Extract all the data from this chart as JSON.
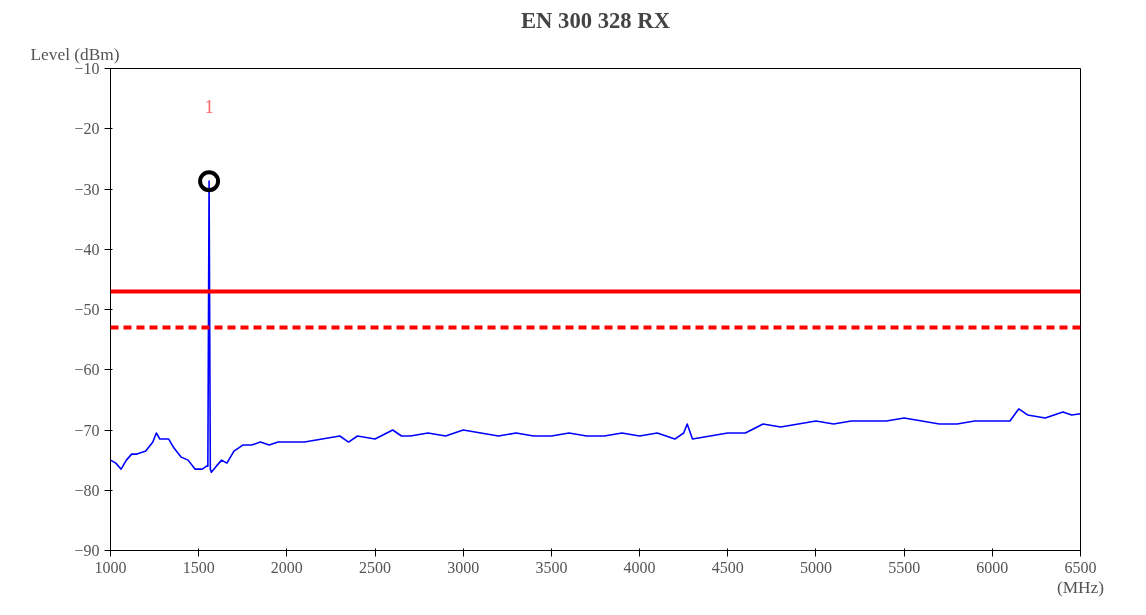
{
  "chart_data": {
    "type": "line",
    "title": "EN 300 328 RX",
    "xlabel": "(MHz)",
    "ylabel": "Level (dBm)",
    "xlim": [
      1000,
      6500
    ],
    "xticks": [
      1000,
      1500,
      2000,
      2500,
      3000,
      3500,
      4000,
      4500,
      5000,
      5500,
      6000,
      6500
    ],
    "ylim": [
      -90,
      -10
    ],
    "yticks": [
      -90,
      -80,
      -70,
      -60,
      -50,
      -40,
      -30,
      -20,
      -10
    ],
    "grid": false,
    "marker": "none",
    "line_style": "solid",
    "series": [
      {
        "color": "#0000ff",
        "x": [
          1000,
          1030,
          1060,
          1090,
          1120,
          1150,
          1200,
          1240,
          1260,
          1280,
          1300,
          1330,
          1360,
          1400,
          1440,
          1480,
          1520,
          1545,
          1552,
          1559,
          1566,
          1572,
          1600,
          1630,
          1660,
          1700,
          1750,
          1800,
          1850,
          1900,
          1950,
          2000,
          2100,
          2200,
          2300,
          2350,
          2400,
          2500,
          2600,
          2650,
          2700,
          2800,
          2900,
          3000,
          3100,
          3200,
          3300,
          3400,
          3500,
          3600,
          3700,
          3800,
          3900,
          4000,
          4100,
          4200,
          4250,
          4270,
          4300,
          4400,
          4500,
          4600,
          4700,
          4800,
          4900,
          5000,
          5100,
          5200,
          5300,
          5400,
          5500,
          5600,
          5700,
          5800,
          5900,
          6000,
          6100,
          6150,
          6200,
          6300,
          6400,
          6450,
          6500
        ],
        "values": [
          -75,
          -75.5,
          -76.5,
          -75,
          -74,
          -74,
          -73.5,
          -72,
          -70.5,
          -71.5,
          -71.5,
          -71.5,
          -73,
          -74.5,
          -75,
          -76.5,
          -76.5,
          -76,
          -76,
          -28.7,
          -76.5,
          -77,
          -76,
          -75,
          -75.5,
          -73.5,
          -72.5,
          -72.5,
          -72,
          -72.5,
          -72,
          -72,
          -72,
          -71.5,
          -71,
          -72,
          -71,
          -71.5,
          -70,
          -71,
          -71,
          -70.5,
          -71,
          -70,
          -70.5,
          -71,
          -70.5,
          -71,
          -71,
          -70.5,
          -71,
          -71,
          -70.5,
          -71,
          -70.5,
          -71.5,
          -70.5,
          -69,
          -71.5,
          -71,
          -70.5,
          -70.5,
          -69,
          -69.5,
          -69,
          -68.5,
          -69,
          -68.5,
          -68.5,
          -68.5,
          -68,
          -68.5,
          -69,
          -69,
          -68.5,
          -68.5,
          -68.5,
          -66.5,
          -67.5,
          -68,
          -67,
          -67.5,
          -67.3
        ]
      },
      {
        "type": "scatter",
        "color": "#000000",
        "marker": "circle",
        "x": [
          1559
        ],
        "values": [
          -28.7
        ]
      }
    ],
    "ref_lines": [
      {
        "axis": "y",
        "value": -47,
        "color": "#ff0000",
        "line_style": "solid"
      },
      {
        "axis": "y",
        "value": -53,
        "color": "#ff0000",
        "line_style": "dashed"
      }
    ],
    "annotations": [
      "1"
    ]
  }
}
